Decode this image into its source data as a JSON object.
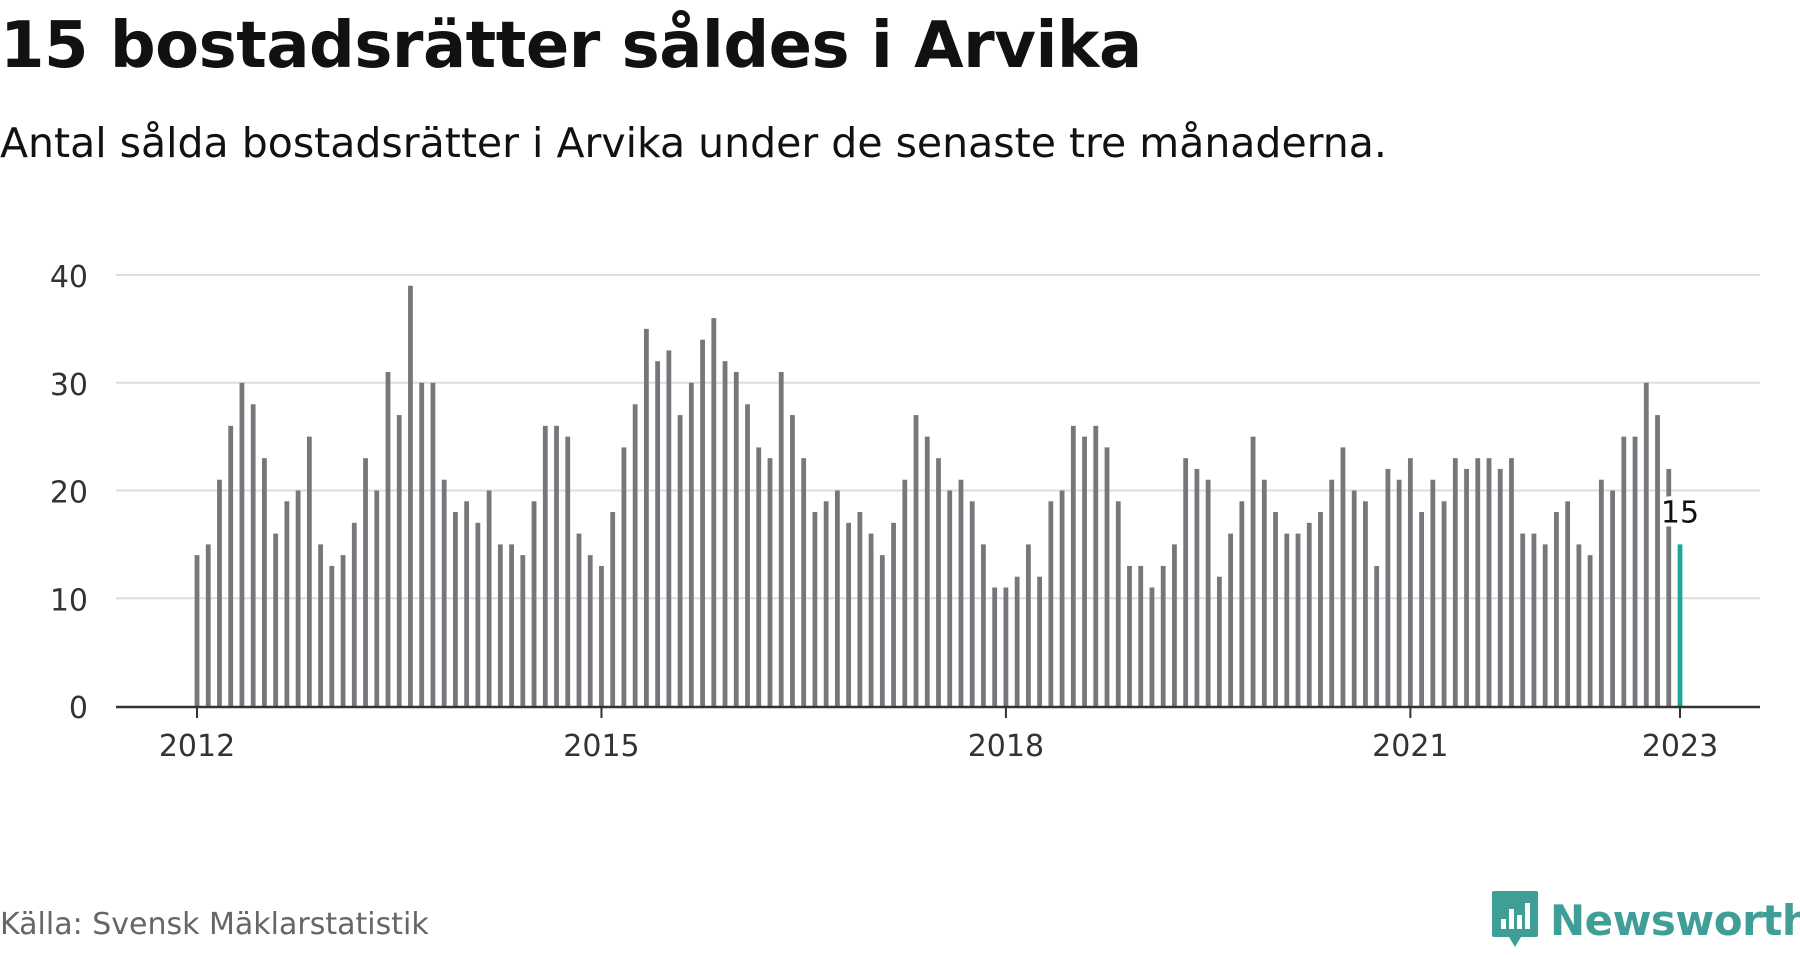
{
  "header": {
    "title": "15 bostadsrätter såldes i Arvika",
    "subtitle": "Antal sålda bostadsrätter i Arvika under de senaste tre månaderna."
  },
  "footer": {
    "source": "Källa: Svensk Mäklarstatistik",
    "brand": "Newsworthy"
  },
  "colors": {
    "bar": "#77777b",
    "highlight": "#1fa59a",
    "grid": "#dddddd",
    "axis": "#333333",
    "brand": "#3f9e96"
  },
  "chart_data": {
    "type": "bar",
    "title": "15 bostadsrätter såldes i Arvika",
    "subtitle": "Antal sålda bostadsrätter i Arvika under de senaste tre månaderna.",
    "xlabel": "",
    "ylabel": "",
    "ylim": [
      0,
      40
    ],
    "yticks": [
      0,
      10,
      20,
      30,
      40
    ],
    "xticks": [
      "2012",
      "2015",
      "2018",
      "2021",
      "2023"
    ],
    "grid": true,
    "legend": "none",
    "x_start": "2012-01",
    "x_end": "2023-01",
    "values": [
      14,
      15,
      21,
      26,
      30,
      28,
      23,
      16,
      19,
      20,
      25,
      15,
      13,
      14,
      17,
      23,
      20,
      31,
      27,
      39,
      30,
      30,
      21,
      18,
      19,
      17,
      20,
      15,
      15,
      14,
      19,
      26,
      26,
      25,
      16,
      14,
      13,
      18,
      24,
      28,
      35,
      32,
      33,
      27,
      30,
      34,
      36,
      32,
      31,
      28,
      24,
      23,
      31,
      27,
      23,
      18,
      19,
      20,
      17,
      18,
      16,
      14,
      17,
      21,
      27,
      25,
      23,
      20,
      21,
      19,
      15,
      11,
      11,
      12,
      15,
      12,
      19,
      20,
      26,
      25,
      26,
      24,
      19,
      13,
      13,
      11,
      13,
      15,
      23,
      22,
      21,
      12,
      16,
      19,
      25,
      21,
      18,
      16,
      16,
      17,
      18,
      21,
      24,
      20,
      19,
      13,
      22,
      21,
      23,
      18,
      21,
      19,
      23,
      22,
      23,
      23,
      22,
      23,
      16,
      16,
      15,
      18,
      19,
      15,
      14,
      21,
      20,
      25,
      25,
      30,
      27,
      22,
      15
    ],
    "highlight": {
      "label": "2023-01",
      "value": 15,
      "text": "15"
    }
  }
}
